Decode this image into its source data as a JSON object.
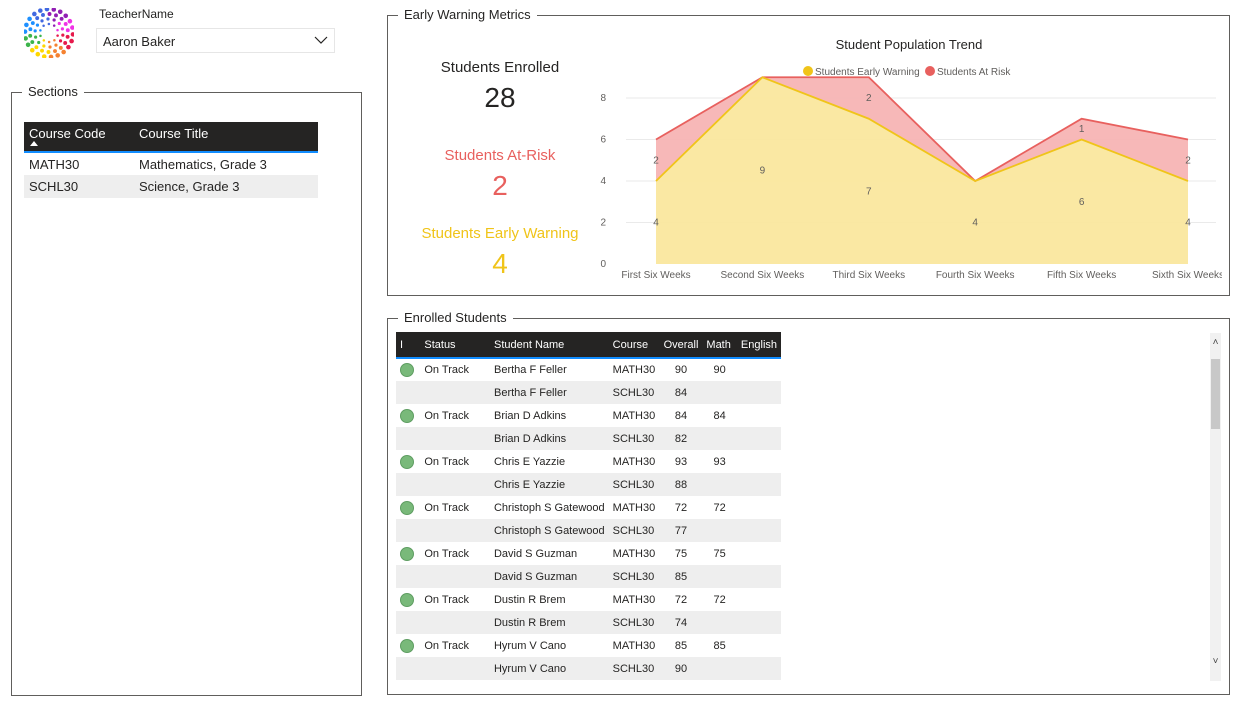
{
  "teacher_slicer": {
    "label": "TeacherName",
    "selected": "Aaron Baker"
  },
  "sections": {
    "title": "Sections",
    "columns": [
      "Course Code",
      "Course Title"
    ],
    "rows": [
      [
        "MATH30",
        "Mathematics, Grade 3"
      ],
      [
        "SCHL30",
        "Science, Grade 3"
      ]
    ]
  },
  "early_warning": {
    "title": "Early Warning Metrics",
    "enrolled_label": "Students Enrolled",
    "enrolled_value": "28",
    "atrisk_label": "Students At-Risk",
    "atrisk_value": "2",
    "warning_label": "Students Early Warning",
    "warning_value": "4"
  },
  "colors": {
    "accent": "#118dff",
    "at_risk": "#e8605e",
    "early_warning": "#f0c419",
    "on_track": "#79b97a",
    "header": "#252423"
  },
  "chart_data": {
    "type": "area",
    "title": "Student Population Trend",
    "categories": [
      "First Six Weeks",
      "Second Six Weeks",
      "Third Six Weeks",
      "Fourth Six Weeks",
      "Fifth Six Weeks",
      "Sixth Six Weeks"
    ],
    "series": [
      {
        "name": "Students Early Warning",
        "values": [
          4,
          9,
          7,
          4,
          6,
          4
        ]
      },
      {
        "name": "Students At Risk",
        "values": [
          2,
          0,
          2,
          0,
          1,
          2
        ]
      }
    ],
    "stacked": true,
    "ylim": [
      0,
      8
    ],
    "yticks": [
      0,
      2,
      4,
      6,
      8
    ],
    "grid": true,
    "legend": "top",
    "data_labels": {
      "early_warning": [
        "4",
        "9",
        "7",
        "4",
        "6",
        "4"
      ],
      "at_risk": [
        "2",
        "",
        "2",
        "",
        "1",
        "2"
      ]
    }
  },
  "enrolled": {
    "title": "Enrolled Students",
    "columns": [
      "I",
      "Status",
      "Student Name",
      "Course",
      "Overall",
      "Math",
      "English"
    ],
    "rows": [
      {
        "dot": true,
        "status": "On Track",
        "name": "Bertha F Feller",
        "course": "MATH30",
        "overall": "90",
        "math": "90",
        "english": ""
      },
      {
        "dot": false,
        "status": "",
        "name": "Bertha F Feller",
        "course": "SCHL30",
        "overall": "84",
        "math": "",
        "english": ""
      },
      {
        "dot": true,
        "status": "On Track",
        "name": "Brian D Adkins",
        "course": "MATH30",
        "overall": "84",
        "math": "84",
        "english": ""
      },
      {
        "dot": false,
        "status": "",
        "name": "Brian D Adkins",
        "course": "SCHL30",
        "overall": "82",
        "math": "",
        "english": ""
      },
      {
        "dot": true,
        "status": "On Track",
        "name": "Chris E Yazzie",
        "course": "MATH30",
        "overall": "93",
        "math": "93",
        "english": ""
      },
      {
        "dot": false,
        "status": "",
        "name": "Chris E Yazzie",
        "course": "SCHL30",
        "overall": "88",
        "math": "",
        "english": ""
      },
      {
        "dot": true,
        "status": "On Track",
        "name": "Christoph S Gatewood",
        "course": "MATH30",
        "overall": "72",
        "math": "72",
        "english": ""
      },
      {
        "dot": false,
        "status": "",
        "name": "Christoph S Gatewood",
        "course": "SCHL30",
        "overall": "77",
        "math": "",
        "english": ""
      },
      {
        "dot": true,
        "status": "On Track",
        "name": "David S Guzman",
        "course": "MATH30",
        "overall": "75",
        "math": "75",
        "english": ""
      },
      {
        "dot": false,
        "status": "",
        "name": "David S Guzman",
        "course": "SCHL30",
        "overall": "85",
        "math": "",
        "english": ""
      },
      {
        "dot": true,
        "status": "On Track",
        "name": "Dustin R Brem",
        "course": "MATH30",
        "overall": "72",
        "math": "72",
        "english": ""
      },
      {
        "dot": false,
        "status": "",
        "name": "Dustin R Brem",
        "course": "SCHL30",
        "overall": "74",
        "math": "",
        "english": ""
      },
      {
        "dot": true,
        "status": "On Track",
        "name": "Hyrum V Cano",
        "course": "MATH30",
        "overall": "85",
        "math": "85",
        "english": ""
      },
      {
        "dot": false,
        "status": "",
        "name": "Hyrum V Cano",
        "course": "SCHL30",
        "overall": "90",
        "math": "",
        "english": ""
      }
    ]
  },
  "icons": {
    "logo": "dotted-burst-logo",
    "dropdown": "chevron-down-icon",
    "scroll_up": "chevron-up-icon",
    "scroll_down": "chevron-down-icon"
  },
  "scroll_glyphs": {
    "up": "˄",
    "down": "˅"
  }
}
